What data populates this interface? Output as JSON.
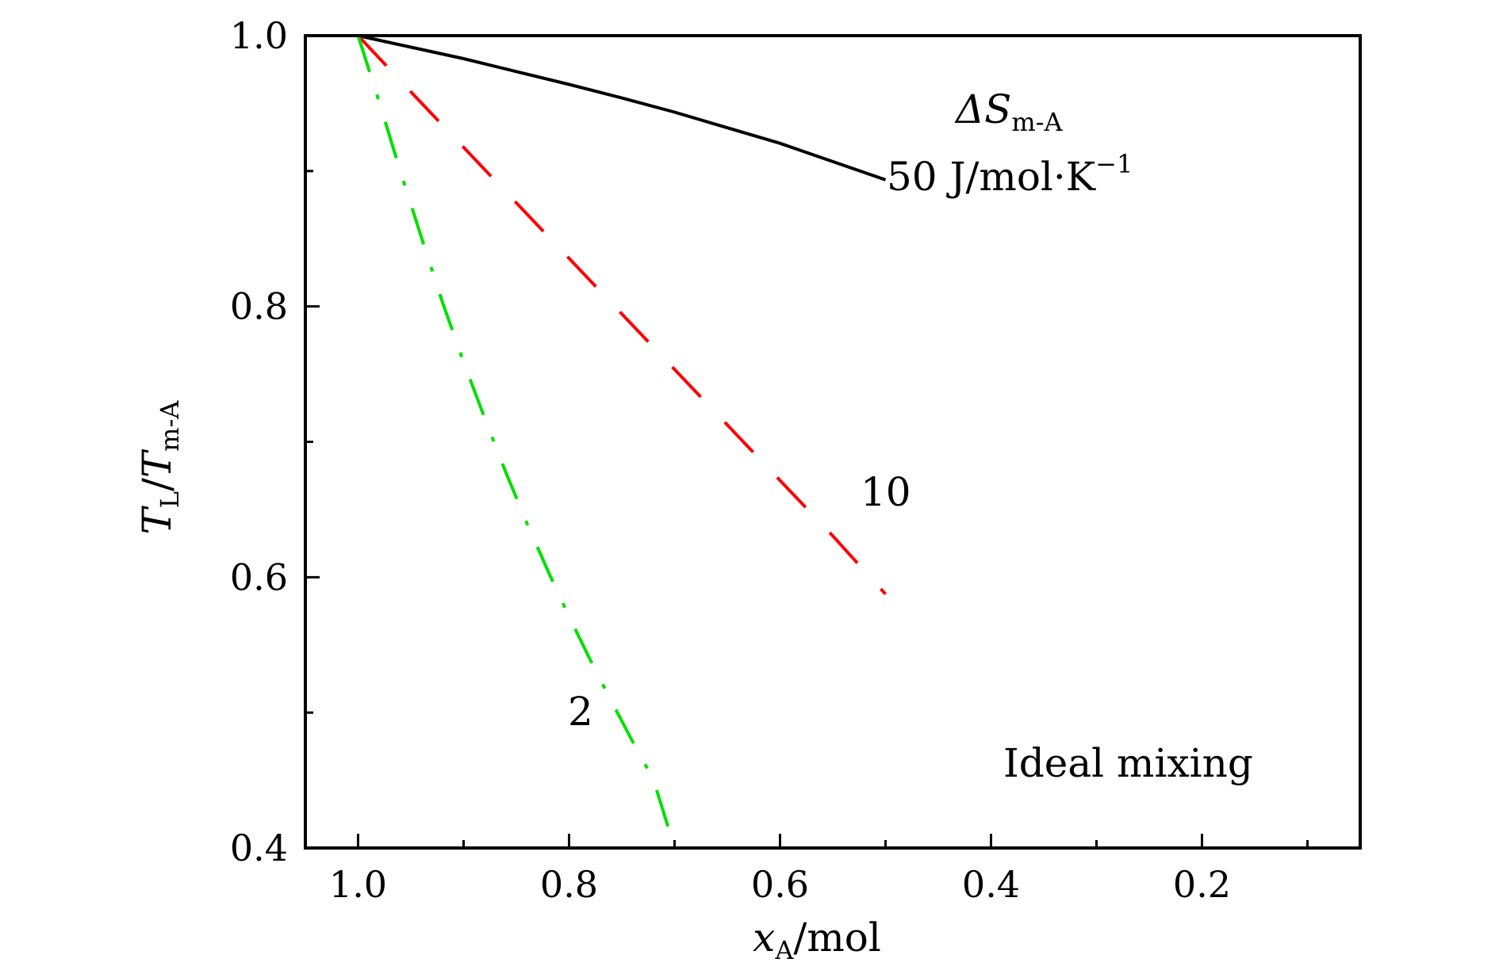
{
  "chart_data": {
    "type": "line",
    "xlabel": {
      "main": "x",
      "sub": "A",
      "rest": "/mol"
    },
    "ylabel": {
      "t1": "T",
      "s1": "L",
      "slash": "/",
      "t2": "T",
      "s2": "m-A"
    },
    "xlim": [
      1.05,
      0.05
    ],
    "ylim": [
      0.4,
      1.0
    ],
    "x_ticks": [
      1.0,
      0.8,
      0.6,
      0.4,
      0.2
    ],
    "x_tick_labels": [
      "1.0",
      "0.8",
      "0.6",
      "0.4",
      "0.2"
    ],
    "y_ticks": [
      0.4,
      0.6,
      0.8,
      1.0
    ],
    "y_tick_labels": [
      "0.4",
      "0.6",
      "0.8",
      "1.0"
    ],
    "grid": false,
    "legend": null,
    "series": [
      {
        "label": "50 J/mol·K⁻¹",
        "color": "#000000",
        "style": "solid",
        "x": [
          1.0,
          0.95,
          0.9,
          0.85,
          0.8,
          0.75,
          0.7,
          0.65,
          0.6,
          0.55,
          0.5
        ],
        "y": [
          1.0,
          0.9915,
          0.983,
          0.9735,
          0.964,
          0.954,
          0.9435,
          0.932,
          0.9205,
          0.907,
          0.8935
        ]
      },
      {
        "label": "10",
        "color": "#ff0000",
        "style": "dashed",
        "x": [
          1.0,
          0.95,
          0.9,
          0.85,
          0.8,
          0.75,
          0.7,
          0.65,
          0.6,
          0.55,
          0.5
        ],
        "y": [
          1.0,
          0.9585,
          0.9175,
          0.8765,
          0.8355,
          0.7945,
          0.7535,
          0.7125,
          0.6715,
          0.6305,
          0.5875
        ]
      },
      {
        "label": "2",
        "color": "#00e000",
        "style": "dashdot",
        "x": [
          1.0,
          0.98,
          0.96,
          0.94,
          0.92,
          0.9,
          0.88,
          0.86,
          0.84,
          0.82,
          0.8,
          0.78,
          0.76,
          0.74,
          0.72,
          0.7
        ],
        "y": [
          1.0,
          0.951,
          0.9,
          0.851,
          0.803,
          0.759,
          0.7175,
          0.6775,
          0.64,
          0.6045,
          0.571,
          0.539,
          0.5085,
          0.479,
          0.4505,
          0.4
        ]
      }
    ],
    "annotations": {
      "entropy_symbol": "ΔS",
      "entropy_sub": "m-A",
      "label_50_value": "50 J/mol·K",
      "label_50_sup": "−1",
      "label_10": "10",
      "label_2": "2",
      "ideal_mixing": "Ideal mixing"
    }
  }
}
